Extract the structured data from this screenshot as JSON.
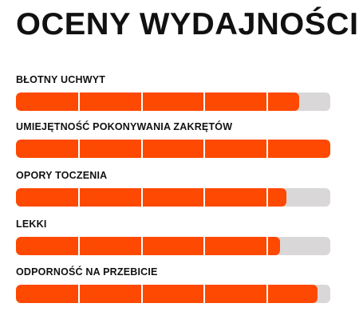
{
  "title": "OCENY WYDAJNOŚCI",
  "colors": {
    "fill": "#fe4902",
    "track": "#d9d7d7",
    "text": "#111111"
  },
  "segments": 5,
  "ratings": [
    {
      "label": "BŁOTNY UCHWYT",
      "value": 0.9
    },
    {
      "label": "UMIEJĘTNOŚĆ POKONYWANIA ZAKRĘTÓW",
      "value": 1.0
    },
    {
      "label": "OPORY TOCZENIA",
      "value": 0.86
    },
    {
      "label": "LEKKI",
      "value": 0.84
    },
    {
      "label": "ODPORNOŚĆ NA PRZEBICIE",
      "value": 0.96
    }
  ]
}
